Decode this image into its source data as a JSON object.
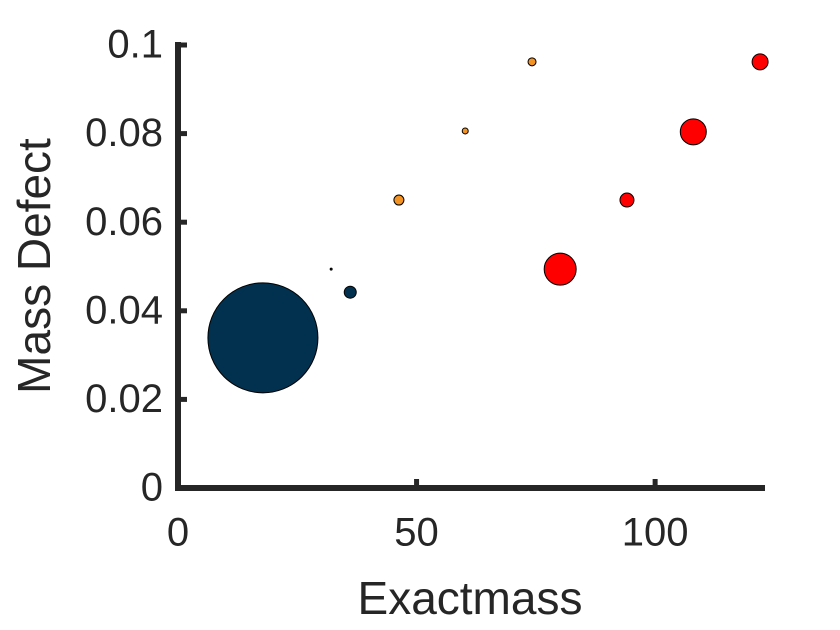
{
  "chart_data": {
    "type": "scatter",
    "x_label": "Exactmass",
    "y_label": "Mass Defect",
    "x": [
      17.8,
      32.1,
      36.1,
      46.3,
      60.2,
      74.2,
      80.1,
      94.1,
      108.0,
      122.0
    ],
    "y": [
      0.0339,
      0.0494,
      0.0442,
      0.065,
      0.0806,
      0.0962,
      0.0494,
      0.065,
      0.0804,
      0.0962
    ],
    "sizes": [
      55,
      1,
      6,
      5,
      3,
      4,
      16,
      7,
      13,
      8
    ],
    "colors": [
      "#02304f",
      "#02304f",
      "#02304f",
      "#f39323",
      "#f39323",
      "#f39323",
      "#ff0000",
      "#ff0000",
      "#ff0000",
      "#ff0000"
    ],
    "xlim": [
      0,
      122.4
    ],
    "ylim": [
      0,
      0.1
    ],
    "xticks": [
      0,
      50,
      100
    ],
    "yticks": [
      0,
      0.02,
      0.04,
      0.06,
      0.08,
      0.1
    ]
  }
}
